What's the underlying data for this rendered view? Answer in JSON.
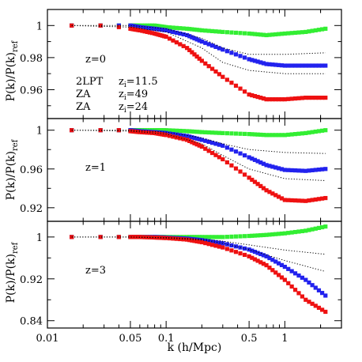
{
  "figure": {
    "xlabel": "k (h/Mpc)",
    "ylabel": "P(k)/P(k)",
    "ylabel_sub": "ref",
    "x_scale": "log",
    "xlim": [
      0.01,
      3.0
    ],
    "x_ticks": [
      {
        "value": 0.01,
        "label": "0.01"
      },
      {
        "value": 0.05,
        "label": "0.05"
      },
      {
        "value": 0.1,
        "label": "0.1"
      },
      {
        "value": 0.5,
        "label": "0.5"
      },
      {
        "value": 1,
        "label": "1"
      }
    ],
    "colors": {
      "green": "#33ee33",
      "blue": "#2222ee",
      "red": "#ee1111",
      "dotted": "#000000"
    },
    "legend": {
      "placement": "top-panel-left",
      "entries": [
        {
          "method": "2LPT",
          "zi_prefix": "z",
          "zi_sub": "i",
          "zi_value": "=11.5",
          "color": "#33ee33"
        },
        {
          "method": "ZA",
          "zi_prefix": "z",
          "zi_sub": "i",
          "zi_value": "=49",
          "color": "#2222ee"
        },
        {
          "method": "ZA",
          "zi_prefix": "z",
          "zi_sub": "i",
          "zi_value": "=24",
          "color": "#ee1111"
        }
      ]
    }
  },
  "chart_data": [
    {
      "type": "scatter",
      "panel_label": "z=0",
      "ylim": [
        0.942,
        1.01
      ],
      "y_ticks": [
        {
          "value": 1,
          "label": "1"
        },
        {
          "value": 0.98,
          "label": "0.98"
        },
        {
          "value": 0.96,
          "label": "0.96"
        }
      ],
      "series": [
        {
          "color_key": "green",
          "x": [
            0.016,
            0.028,
            0.04,
            0.05,
            0.06,
            0.08,
            0.1,
            0.15,
            0.2,
            0.3,
            0.5,
            0.7,
            1.0,
            1.5,
            2.2
          ],
          "y": [
            1.0,
            1.0,
            1.0,
            1.0,
            1.0,
            1.0,
            0.999,
            0.998,
            0.997,
            0.996,
            0.995,
            0.994,
            0.995,
            0.996,
            0.998
          ]
        },
        {
          "color_key": "blue",
          "x": [
            0.016,
            0.028,
            0.04,
            0.05,
            0.06,
            0.08,
            0.1,
            0.15,
            0.2,
            0.3,
            0.5,
            0.7,
            1.0,
            1.5,
            2.2
          ],
          "y": [
            1.0,
            1.0,
            1.0,
            1.0,
            0.999,
            0.998,
            0.997,
            0.994,
            0.99,
            0.985,
            0.979,
            0.976,
            0.975,
            0.975,
            0.975
          ]
        },
        {
          "color_key": "red",
          "x": [
            0.016,
            0.028,
            0.04,
            0.05,
            0.06,
            0.08,
            0.1,
            0.15,
            0.2,
            0.3,
            0.5,
            0.7,
            1.0,
            1.5,
            2.2
          ],
          "y": [
            1.0,
            1.0,
            0.999,
            0.998,
            0.997,
            0.995,
            0.993,
            0.986,
            0.978,
            0.968,
            0.957,
            0.954,
            0.954,
            0.955,
            0.955
          ]
        },
        {
          "color_key": "dotted",
          "dotted": true,
          "x": [
            0.016,
            0.05,
            0.1,
            0.2,
            0.3,
            0.5,
            1.0,
            2.2
          ],
          "y": [
            1.0,
            1.0,
            0.998,
            0.992,
            0.986,
            0.982,
            0.982,
            0.983
          ]
        },
        {
          "color_key": "dotted",
          "dotted": true,
          "x": [
            0.016,
            0.05,
            0.1,
            0.2,
            0.3,
            0.5,
            1.0,
            2.2
          ],
          "y": [
            1.0,
            0.999,
            0.996,
            0.986,
            0.977,
            0.972,
            0.97,
            0.97
          ]
        }
      ]
    },
    {
      "type": "scatter",
      "panel_label": "z=1",
      "ylim": [
        0.906,
        1.012
      ],
      "y_ticks": [
        {
          "value": 1,
          "label": "1"
        },
        {
          "value": 0.96,
          "label": "0.96"
        },
        {
          "value": 0.92,
          "label": "0.92"
        }
      ],
      "series": [
        {
          "color_key": "green",
          "x": [
            0.016,
            0.028,
            0.04,
            0.05,
            0.06,
            0.08,
            0.1,
            0.15,
            0.2,
            0.3,
            0.5,
            0.7,
            1.0,
            1.5,
            2.2
          ],
          "y": [
            1.0,
            1.0,
            1.0,
            1.0,
            1.0,
            1.0,
            1.0,
            0.999,
            0.998,
            0.997,
            0.996,
            0.995,
            0.995,
            0.997,
            1.0
          ]
        },
        {
          "color_key": "blue",
          "x": [
            0.016,
            0.028,
            0.04,
            0.05,
            0.06,
            0.08,
            0.1,
            0.15,
            0.2,
            0.3,
            0.5,
            0.7,
            1.0,
            1.5,
            2.2
          ],
          "y": [
            1.0,
            1.0,
            1.0,
            1.0,
            0.999,
            0.998,
            0.997,
            0.994,
            0.99,
            0.984,
            0.972,
            0.964,
            0.959,
            0.958,
            0.96
          ]
        },
        {
          "color_key": "red",
          "x": [
            0.016,
            0.028,
            0.04,
            0.05,
            0.06,
            0.08,
            0.1,
            0.15,
            0.2,
            0.3,
            0.5,
            0.7,
            1.0,
            1.5,
            2.2
          ],
          "y": [
            1.0,
            1.0,
            1.0,
            0.999,
            0.998,
            0.997,
            0.995,
            0.99,
            0.983,
            0.97,
            0.951,
            0.938,
            0.928,
            0.927,
            0.93
          ]
        },
        {
          "color_key": "dotted",
          "dotted": true,
          "x": [
            0.016,
            0.05,
            0.1,
            0.2,
            0.3,
            0.5,
            1.0,
            2.2
          ],
          "y": [
            1.0,
            1.0,
            0.998,
            0.992,
            0.986,
            0.98,
            0.977,
            0.976
          ]
        },
        {
          "color_key": "dotted",
          "dotted": true,
          "x": [
            0.016,
            0.05,
            0.1,
            0.2,
            0.3,
            0.5,
            1.0,
            2.2
          ],
          "y": [
            1.0,
            0.999,
            0.996,
            0.986,
            0.974,
            0.96,
            0.95,
            0.948
          ]
        }
      ]
    },
    {
      "type": "scatter",
      "panel_label": "z=3",
      "ylim": [
        0.826,
        1.03
      ],
      "y_ticks": [
        {
          "value": 1,
          "label": "1"
        },
        {
          "value": 0.92,
          "label": "0.92"
        },
        {
          "value": 0.84,
          "label": "0.84"
        }
      ],
      "series": [
        {
          "color_key": "green",
          "x": [
            0.016,
            0.028,
            0.04,
            0.05,
            0.06,
            0.08,
            0.1,
            0.15,
            0.2,
            0.3,
            0.5,
            0.7,
            1.0,
            1.5,
            2.2
          ],
          "y": [
            1.0,
            1.0,
            1.0,
            1.0,
            1.0,
            1.0,
            1.0,
            1.0,
            1.0,
            1.0,
            1.002,
            1.004,
            1.007,
            1.012,
            1.02
          ]
        },
        {
          "color_key": "blue",
          "x": [
            0.016,
            0.028,
            0.04,
            0.05,
            0.06,
            0.08,
            0.1,
            0.15,
            0.2,
            0.3,
            0.5,
            0.7,
            1.0,
            1.5,
            2.2
          ],
          "y": [
            1.0,
            1.0,
            1.0,
            1.0,
            1.0,
            1.0,
            0.999,
            0.997,
            0.994,
            0.988,
            0.976,
            0.963,
            0.943,
            0.918,
            0.888
          ]
        },
        {
          "color_key": "red",
          "x": [
            0.016,
            0.028,
            0.04,
            0.05,
            0.06,
            0.08,
            0.1,
            0.15,
            0.2,
            0.3,
            0.5,
            0.7,
            1.0,
            1.5,
            2.2
          ],
          "y": [
            1.0,
            1.0,
            1.0,
            1.0,
            1.0,
            0.999,
            0.998,
            0.995,
            0.99,
            0.98,
            0.963,
            0.946,
            0.918,
            0.88,
            0.857
          ]
        },
        {
          "color_key": "dotted",
          "dotted": true,
          "x": [
            0.016,
            0.05,
            0.1,
            0.2,
            0.3,
            0.5,
            1.0,
            2.2
          ],
          "y": [
            1.0,
            1.0,
            0.999,
            0.996,
            0.992,
            0.985,
            0.975,
            0.967
          ]
        },
        {
          "color_key": "dotted",
          "dotted": true,
          "x": [
            0.016,
            0.05,
            0.1,
            0.2,
            0.3,
            0.5,
            1.0,
            2.2
          ],
          "y": [
            1.0,
            1.0,
            0.998,
            0.994,
            0.988,
            0.976,
            0.955,
            0.934
          ]
        }
      ]
    }
  ]
}
